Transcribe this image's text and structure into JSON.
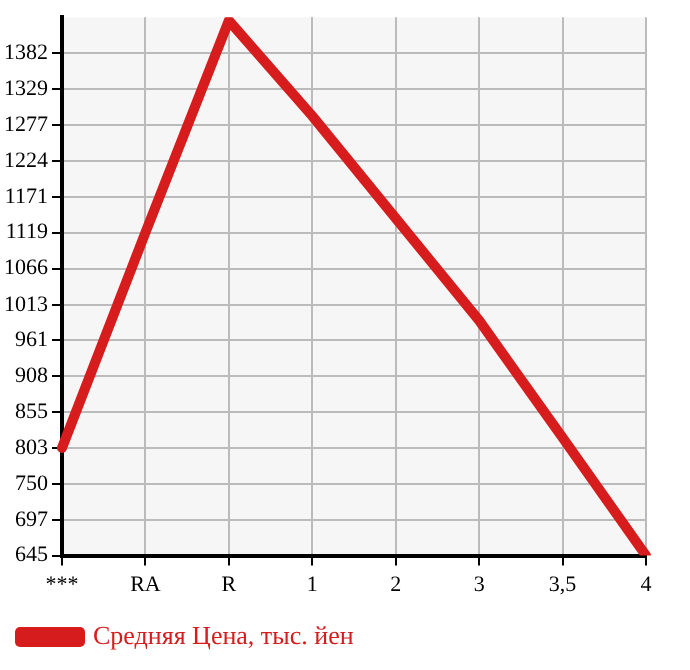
{
  "chart_data": {
    "type": "line",
    "categories": [
      "***",
      "RA",
      "R",
      "1",
      "2",
      "3",
      "3,5",
      "4"
    ],
    "series": [
      {
        "name": "Средняя Цена, тыс. йен",
        "color": "#d61c1c",
        "values": [
          803,
          1119,
          1430,
          1290,
          1140,
          990,
          818,
          645
        ]
      }
    ],
    "ylim": [
      645,
      1435
    ],
    "yticks": [
      645,
      697,
      750,
      803,
      855,
      908,
      961,
      1013,
      1066,
      1119,
      1171,
      1224,
      1277,
      1329,
      1382
    ],
    "grid": true,
    "legend": "bottom left",
    "marker": "none",
    "line_style": "solid"
  }
}
